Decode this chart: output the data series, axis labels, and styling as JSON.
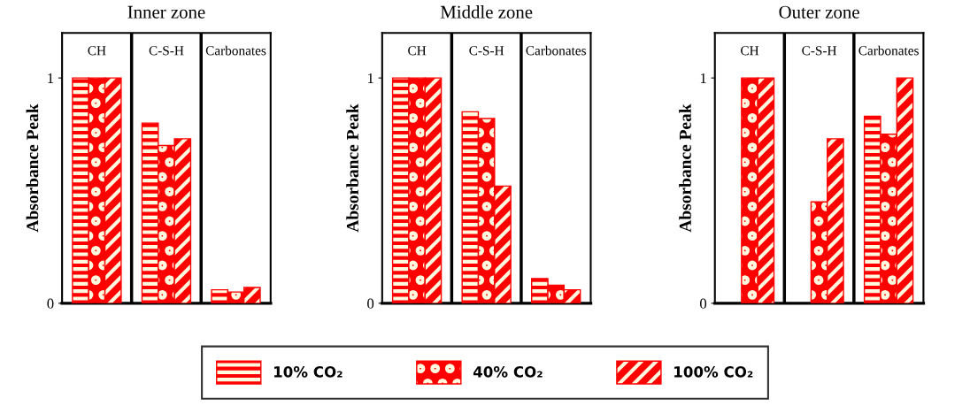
{
  "chart_data": [
    {
      "type": "bar",
      "title": "Inner zone",
      "ylabel": "Absorbance Peak",
      "categories": [
        "CH",
        "C-S-H",
        "Carbonates"
      ],
      "ylim": [
        0,
        1.2
      ],
      "yticks": [
        0,
        1
      ],
      "legend": "bottom",
      "tick_labels": "y",
      "series": [
        {
          "name": "10% CO₂",
          "color": "#ff0000",
          "values": [
            1,
            0.8,
            0.06
          ]
        },
        {
          "name": "40% CO₂",
          "color": "#ff0000",
          "values": [
            1,
            0.7,
            0.05
          ]
        },
        {
          "name": "100% CO₂",
          "color": "#ff0000",
          "values": [
            1,
            0.73,
            0.07
          ]
        }
      ]
    },
    {
      "type": "bar",
      "title": "Middle zone",
      "ylabel": "Absorbance Peak",
      "categories": [
        "CH",
        "C-S-H",
        "Carbonates"
      ],
      "ylim": [
        0,
        1.2
      ],
      "yticks": [
        0,
        1
      ],
      "tick_labels": "y",
      "series": [
        {
          "color": "#ff0000",
          "values": [
            1,
            0.85,
            0.11
          ]
        },
        {
          "color": "#ff0000",
          "values": [
            1,
            0.82,
            0.08
          ]
        },
        {
          "color": "#ff0000",
          "values": [
            1,
            0.52,
            0.06
          ]
        }
      ]
    },
    {
      "type": "bar",
      "title": "Outer zone",
      "ylabel": "Absorbance Peak",
      "categories": [
        "CH",
        "C-S-H",
        "Carbonates"
      ],
      "ylim": [
        0,
        1.2
      ],
      "yticks": [
        0,
        1
      ],
      "tick_labels": "y",
      "series": [
        {
          "color": "#ff0000",
          "values": [
            null,
            null,
            0.83
          ]
        },
        {
          "color": "#ff0000",
          "values": [
            1,
            0.45,
            0.75
          ]
        },
        {
          "color": "#ff0000",
          "values": [
            1,
            0.73,
            1
          ]
        }
      ]
    }
  ]
}
